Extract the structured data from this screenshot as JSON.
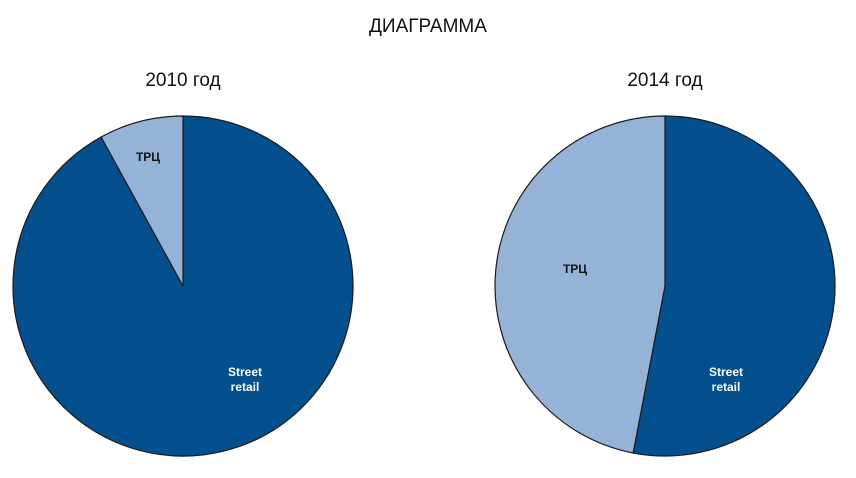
{
  "title": "ДИАГРАММА",
  "colors": {
    "street_retail": "#04508F",
    "trc": "#95B3D7",
    "outline": "#1a1a1a"
  },
  "pies": [
    {
      "title": "2010 год",
      "labels": {
        "trc": "ТРЦ",
        "street_line1": "Street",
        "street_line2": "retail"
      }
    },
    {
      "title": "2014 год",
      "labels": {
        "trc": "ТРЦ",
        "street_line1": "Street",
        "street_line2": "retail"
      }
    }
  ],
  "chart_data": [
    {
      "type": "pie",
      "title": "2010 год",
      "suptitle": "ДИАГРАММА",
      "categories": [
        "ТРЦ",
        "Street retail"
      ],
      "values": [
        8,
        92
      ],
      "unit": "%",
      "colors": [
        "#95B3D7",
        "#04508F"
      ]
    },
    {
      "type": "pie",
      "title": "2014 год",
      "suptitle": "ДИАГРАММА",
      "categories": [
        "ТРЦ",
        "Street retail"
      ],
      "values": [
        47,
        53
      ],
      "unit": "%",
      "colors": [
        "#95B3D7",
        "#04508F"
      ]
    }
  ]
}
